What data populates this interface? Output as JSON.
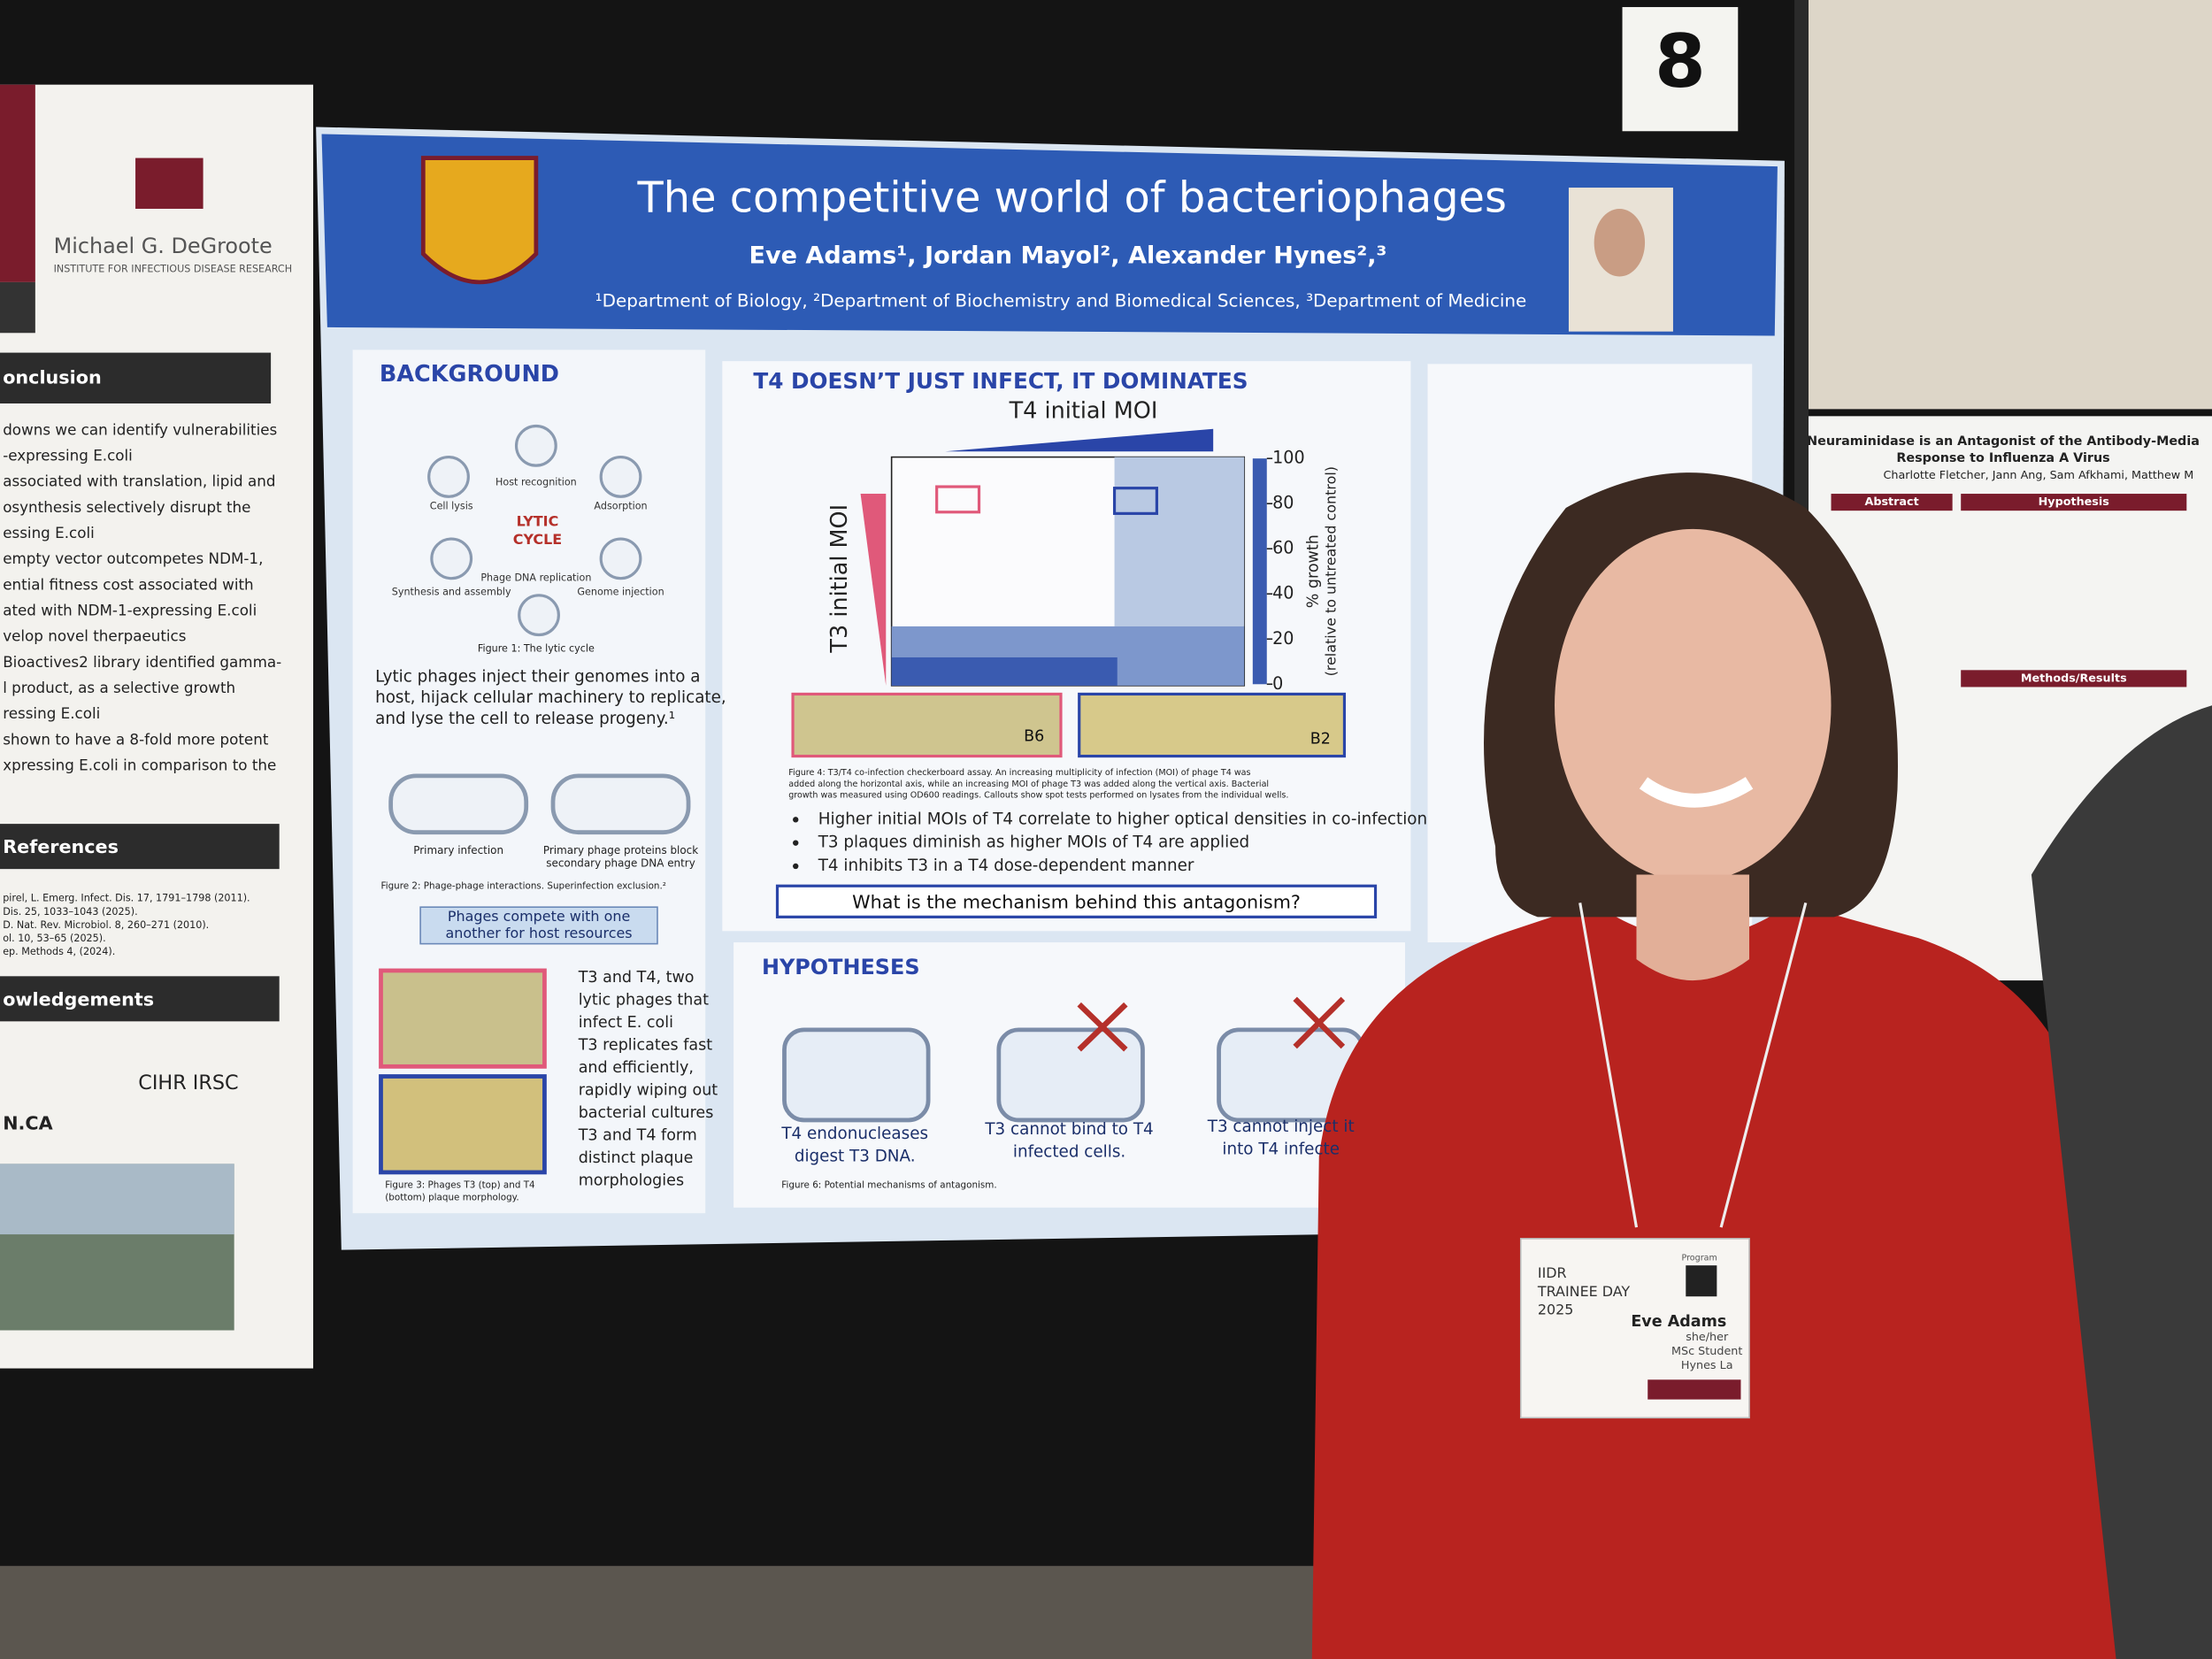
{
  "number_card": "8",
  "poster": {
    "title": "The competitive world of bacteriophages",
    "authors": "Eve Adams¹, Jordan Mayol², Alexander Hynes²,³",
    "affiliations": "¹Department of Biology, ²Department of Biochemistry and Biomedical Sciences, ³Department of Medicine",
    "background": {
      "heading": "BACKGROUND",
      "cycle_center": [
        "LYTIC",
        "CYCLE"
      ],
      "cycle_labels": [
        "Cell lysis",
        "Host recognition",
        "Adsorption",
        "Synthesis and assembly",
        "Phage DNA replication",
        "Genome injection"
      ],
      "figure1_caption": "Figure 1: The lytic cycle",
      "text": [
        "Lytic phages inject their genomes into a",
        "host, hijack cellular machinery to replicate,",
        "and lyse the cell to release progeny.¹"
      ],
      "figure2_labels": [
        "Primary infection",
        "Primary phage proteins block",
        "secondary phage DNA entry"
      ],
      "figure2_caption": "Figure 2: Phage-phage interactions. Superinfection exclusion.²",
      "callout": [
        "Phages compete with one",
        "another for host resources"
      ],
      "plaque_text": [
        "T3 and T4, two",
        "lytic phages that",
        "infect E. coli",
        "T3 replicates fast",
        "and efficiently,",
        "rapidly wiping out",
        "bacterial cultures",
        "T3 and T4 form",
        "distinct plaque",
        "morphologies"
      ],
      "figure3_caption": [
        "Figure 3: Phages T3 (top) and T4",
        "(bottom) plaque morphology."
      ]
    },
    "main_figure": {
      "heading": "T4 DOESN’T JUST INFECT, IT DOMINATES",
      "x_label": "T4 initial MOI",
      "y_label": "T3 initial MOI",
      "colorbar_label": "% growth",
      "colorbar_sublabel": "(relative to untreated control)",
      "colorbar_ticks": [
        100,
        80,
        60,
        40,
        20,
        0
      ],
      "well_labels": [
        "B6",
        "B2"
      ],
      "figure4_caption": [
        "Figure 4: T3/T4 co-infection checkerboard assay. An increasing multiplicity of infection (MOI) of phage T4 was",
        "added along the horizontal axis, while an increasing MOI of phage T3 was added along the vertical axis. Bacterial",
        "growth was measured using OD600 readings. Callouts show spot tests performed on lysates from the individual wells."
      ],
      "bullets": [
        "Higher initial MOIs of T4 correlate to higher optical densities in co-infection",
        "T3 plaques diminish as higher MOIs of T4 are applied",
        "T4 inhibits T3 in a T4 dose-dependent manner"
      ],
      "question": "What is the mechanism behind this antagonism?"
    },
    "hypotheses": {
      "heading": "HYPOTHESES",
      "items": [
        [
          "T4 endonucleases",
          "digest T3 DNA."
        ],
        [
          "T3 cannot bind to T4",
          "infected cells."
        ],
        [
          "T3 cannot inject it",
          "into T4 infecte"
        ]
      ],
      "figure6_caption": "Figure 6: Potential mechanisms of antagonism."
    }
  },
  "left_poster": {
    "institute": [
      "Michael G. DeGroote",
      "INSTITUTE FOR INFECTIOUS DISEASE RESEARCH"
    ],
    "headings": [
      "onclusion",
      "References",
      "owledgements"
    ],
    "conclusion_lines": [
      "downs we can identify vulnerabilities",
      "-expressing E.coli",
      "associated with translation, lipid and",
      "osynthesis selectively disrupt the",
      "essing E.coli",
      "empty vector outcompetes NDM-1,",
      "ential fitness cost associated with",
      "ated with NDM-1-expressing E.coli",
      "velop novel therpaeutics",
      "Bioactives2 library identified gamma-",
      "l product, as a selective growth",
      "ressing E.coli",
      "shown to have a 8-fold more potent",
      "xpressing E.coli in comparison to the"
    ],
    "references": [
      "pirel, L. Emerg. Infect. Dis. 17, 1791–1798 (2011).",
      "Dis. 25, 1033–1043 (2025).",
      "D. Nat. Rev. Microbiol. 8, 260–271 (2010).",
      "ol. 10, 53–65 (2025).",
      "ep. Methods 4, (2024)."
    ],
    "logos": [
      "CIHR IRSC",
      "N.CA"
    ]
  },
  "right_poster": {
    "title": [
      "Neuraminidase is an Antagonist of the Antibody-Media",
      "Response to Influenza A Virus"
    ],
    "authors": "Charlotte Fletcher, Jann Ang, Sam Afkhami, Matthew M",
    "headings": [
      "Abstract",
      "Hypothesis",
      "Methods/Results"
    ]
  },
  "badge": {
    "event": [
      "IIDR",
      "TRAINEE DAY",
      "2025"
    ],
    "program": "Program",
    "name": "Eve Adams",
    "details": [
      "she/her",
      "MSc Student",
      "Hynes La"
    ]
  }
}
